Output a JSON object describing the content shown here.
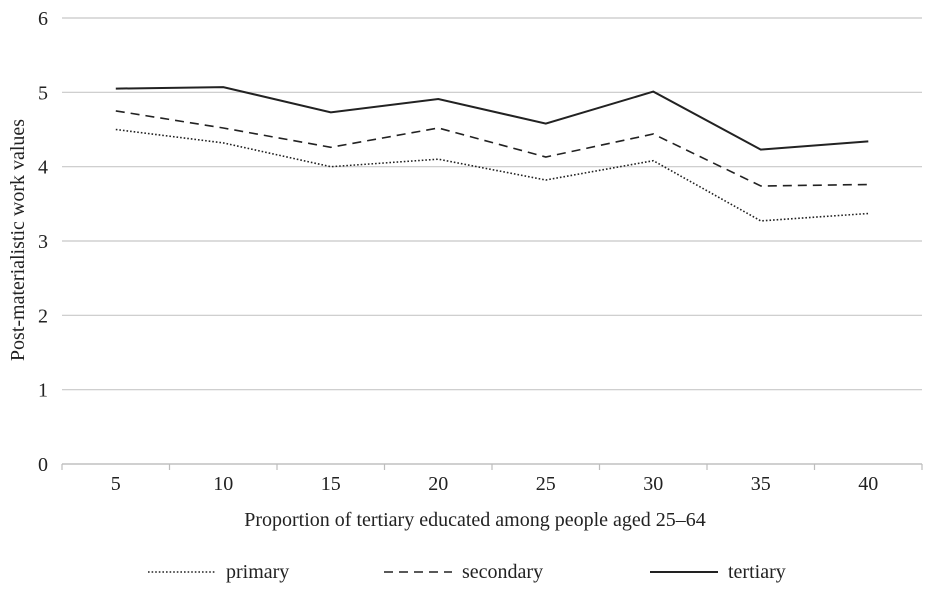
{
  "chart_data": {
    "type": "line",
    "title": "",
    "xlabel": "Proportion of tertiary educated among people aged 25–64",
    "ylabel": "Post-materialistic work values",
    "categories": [
      "5",
      "10",
      "15",
      "20",
      "25",
      "30",
      "35",
      "40"
    ],
    "y_ticks": [
      "0",
      "1",
      "2",
      "3",
      "4",
      "5",
      "6"
    ],
    "ylim": [
      0,
      6
    ],
    "grid": "horizontal",
    "legend_position": "bottom",
    "series": [
      {
        "name": "primary",
        "style": "dotted",
        "color": "#222222",
        "values": [
          4.5,
          4.32,
          4.0,
          4.1,
          3.82,
          4.08,
          3.27,
          3.37
        ]
      },
      {
        "name": "secondary",
        "style": "dashed",
        "color": "#222222",
        "values": [
          4.75,
          4.52,
          4.26,
          4.52,
          4.13,
          4.44,
          3.74,
          3.76
        ]
      },
      {
        "name": "tertiary",
        "style": "solid",
        "color": "#222222",
        "values": [
          5.05,
          5.07,
          4.73,
          4.91,
          4.58,
          5.01,
          4.23,
          4.34
        ]
      }
    ]
  }
}
